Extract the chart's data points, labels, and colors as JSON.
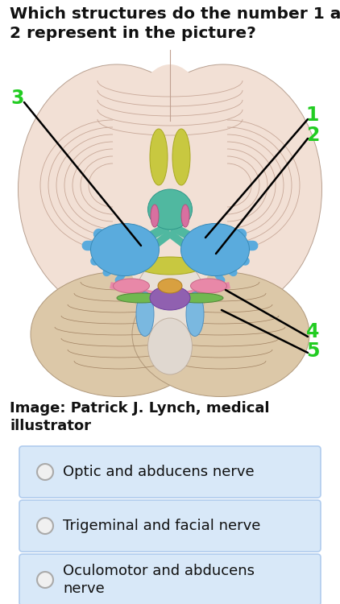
{
  "title_line1": "Which structures do the number 1 and",
  "title_line2": "2 represent in the picture?",
  "title_fontsize": 14.5,
  "image_credit_line1": "Image: Patrick J. Lynch, medical",
  "image_credit_line2": "illustrator",
  "image_credit_fontsize": 13,
  "options": [
    "Optic and abducens nerve",
    "Trigeminal and facial nerve",
    "Oculomotor and abducens\nnerve"
  ],
  "option_bg_color": "#d8e8f8",
  "option_border_color": "#b0ccee",
  "option_text_color": "#111111",
  "option_fontsize": 13,
  "bg_color": "#ffffff",
  "label_color": "#22cc22",
  "label_fontsize": 17,
  "line_color": "#000000",
  "brain_bg": "#f2e0d5",
  "brain_gyri": "#e8cfc0",
  "cerebellum_color": "#dcc8a8",
  "brainstem_color": "#e0d0c0",
  "blue_nerve": "#5aabdd",
  "green_nerve": "#6abf80",
  "yellow_nerve": "#c8c840",
  "pink_nerve": "#e888a8",
  "purple_nerve": "#9060b0",
  "orange_nerve": "#d8a040",
  "teal_nerve": "#50b8b0"
}
